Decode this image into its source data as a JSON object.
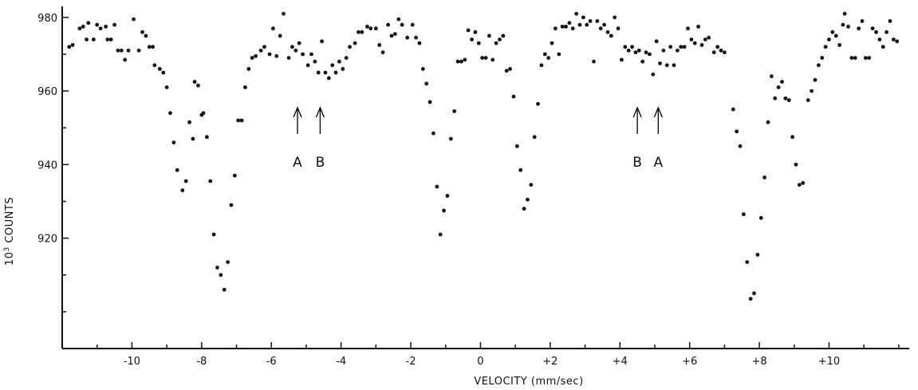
{
  "chart_data": {
    "type": "scatter",
    "title": "",
    "xlabel": "VELOCITY (mm/sec)",
    "ylabel": "10",
    "ylabel_sup": "3",
    "ylabel_rest": " COUNTS",
    "xlim": [
      -12,
      12.3
    ],
    "ylim": [
      890,
      983
    ],
    "x_ticks": [
      -12,
      -11,
      -10,
      -9,
      -8,
      -7,
      -6,
      -5,
      -4,
      -3,
      -2,
      -1,
      0,
      1,
      2,
      3,
      4,
      5,
      6,
      7,
      8,
      9,
      10,
      11,
      12
    ],
    "x_tick_labels": [
      {
        "value": -10,
        "text": "-10"
      },
      {
        "value": -8,
        "text": "-8"
      },
      {
        "value": -6,
        "text": "-6"
      },
      {
        "value": -4,
        "text": "-4"
      },
      {
        "value": -2,
        "text": "-2"
      },
      {
        "value": 0,
        "text": "0"
      },
      {
        "value": 2,
        "text": "+2"
      },
      {
        "value": 4,
        "text": "+4"
      },
      {
        "value": 6,
        "text": "+6"
      },
      {
        "value": 8,
        "text": "+8"
      },
      {
        "value": 10,
        "text": "+10"
      }
    ],
    "y_ticks": [
      900,
      910,
      920,
      930,
      940,
      950,
      960,
      970,
      980
    ],
    "y_tick_labels": [
      {
        "value": 920,
        "text": "920"
      },
      {
        "value": 940,
        "text": "940"
      },
      {
        "value": 960,
        "text": "960"
      },
      {
        "value": 980,
        "text": "980"
      }
    ],
    "grid": false,
    "series": [
      {
        "points": [
          [
            -11.8,
            972
          ],
          [
            -11.7,
            972.5
          ],
          [
            -11.5,
            977
          ],
          [
            -11.4,
            977.5
          ],
          [
            -11.3,
            974
          ],
          [
            -11.25,
            978.5
          ],
          [
            -11.1,
            974
          ],
          [
            -11.0,
            978
          ],
          [
            -10.9,
            977
          ],
          [
            -10.75,
            977.5
          ],
          [
            -10.7,
            974
          ],
          [
            -10.6,
            974
          ],
          [
            -10.5,
            978
          ],
          [
            -10.4,
            971
          ],
          [
            -10.3,
            971
          ],
          [
            -10.2,
            968.5
          ],
          [
            -10.1,
            971
          ],
          [
            -9.95,
            979.5
          ],
          [
            -9.8,
            971
          ],
          [
            -9.7,
            976
          ],
          [
            -9.6,
            975
          ],
          [
            -9.5,
            972
          ],
          [
            -9.4,
            972
          ],
          [
            -9.35,
            967
          ],
          [
            -9.2,
            966
          ],
          [
            -9.1,
            965
          ],
          [
            -9.0,
            961
          ],
          [
            -8.9,
            954
          ],
          [
            -8.8,
            946
          ],
          [
            -8.7,
            938.5
          ],
          [
            -8.55,
            933
          ],
          [
            -8.45,
            935.5
          ],
          [
            -8.35,
            951.5
          ],
          [
            -8.25,
            947
          ],
          [
            -8.2,
            962.5
          ],
          [
            -8.1,
            961.5
          ],
          [
            -8.0,
            953.5
          ],
          [
            -7.95,
            954
          ],
          [
            -7.85,
            947.5
          ],
          [
            -7.75,
            935.5
          ],
          [
            -7.65,
            921
          ],
          [
            -7.55,
            912
          ],
          [
            -7.45,
            910
          ],
          [
            -7.35,
            906
          ],
          [
            -7.25,
            913.5
          ],
          [
            -7.15,
            929
          ],
          [
            -7.05,
            937
          ],
          [
            -6.95,
            952
          ],
          [
            -6.85,
            952
          ],
          [
            -6.75,
            961
          ],
          [
            -6.65,
            966
          ],
          [
            -6.55,
            969
          ],
          [
            -6.45,
            969.5
          ],
          [
            -6.3,
            971
          ],
          [
            -6.2,
            972
          ],
          [
            -6.05,
            970
          ],
          [
            -5.95,
            977
          ],
          [
            -5.85,
            969.5
          ],
          [
            -5.75,
            975
          ],
          [
            -5.65,
            981
          ],
          [
            -5.5,
            969
          ],
          [
            -5.4,
            972
          ],
          [
            -5.3,
            971
          ],
          [
            -5.2,
            973
          ],
          [
            -5.1,
            970
          ],
          [
            -4.95,
            967
          ],
          [
            -4.85,
            970
          ],
          [
            -4.75,
            968
          ],
          [
            -4.65,
            965
          ],
          [
            -4.55,
            973.5
          ],
          [
            -4.45,
            965
          ],
          [
            -4.35,
            963.5
          ],
          [
            -4.25,
            967
          ],
          [
            -4.15,
            965
          ],
          [
            -4.05,
            968
          ],
          [
            -3.95,
            966
          ],
          [
            -3.85,
            969
          ],
          [
            -3.75,
            972
          ],
          [
            -3.6,
            973
          ],
          [
            -3.5,
            976
          ],
          [
            -3.4,
            976
          ],
          [
            -3.25,
            977.5
          ],
          [
            -3.15,
            977
          ],
          [
            -3.0,
            977
          ],
          [
            -2.9,
            972.5
          ],
          [
            -2.8,
            970.5
          ],
          [
            -2.65,
            978
          ],
          [
            -2.55,
            975
          ],
          [
            -2.45,
            975.5
          ],
          [
            -2.35,
            979.5
          ],
          [
            -2.25,
            978
          ],
          [
            -2.1,
            974.5
          ],
          [
            -1.95,
            978
          ],
          [
            -1.85,
            974.5
          ],
          [
            -1.75,
            973
          ],
          [
            -1.65,
            966
          ],
          [
            -1.55,
            962
          ],
          [
            -1.45,
            957
          ],
          [
            -1.35,
            948.5
          ],
          [
            -1.25,
            934
          ],
          [
            -1.15,
            921
          ],
          [
            -1.05,
            927.5
          ],
          [
            -0.95,
            931.5
          ],
          [
            -0.85,
            947
          ],
          [
            -0.75,
            954.5
          ],
          [
            -0.65,
            968
          ],
          [
            -0.55,
            968
          ],
          [
            -0.45,
            968.5
          ],
          [
            -0.35,
            976.5
          ],
          [
            -0.25,
            974
          ],
          [
            -0.15,
            976
          ],
          [
            -0.05,
            973
          ],
          [
            0.05,
            969
          ],
          [
            0.15,
            969
          ],
          [
            0.25,
            975
          ],
          [
            0.35,
            968.5
          ],
          [
            0.45,
            973
          ],
          [
            0.55,
            974
          ],
          [
            0.65,
            975
          ],
          [
            0.75,
            965.5
          ],
          [
            0.85,
            966
          ],
          [
            0.95,
            958.5
          ],
          [
            1.05,
            945
          ],
          [
            1.15,
            938.5
          ],
          [
            1.25,
            928
          ],
          [
            1.35,
            930.5
          ],
          [
            1.45,
            934.5
          ],
          [
            1.55,
            947.5
          ],
          [
            1.65,
            956.5
          ],
          [
            1.75,
            967
          ],
          [
            1.85,
            970
          ],
          [
            1.95,
            969
          ],
          [
            2.05,
            973
          ],
          [
            2.15,
            977
          ],
          [
            2.25,
            970
          ],
          [
            2.35,
            977.5
          ],
          [
            2.45,
            977.5
          ],
          [
            2.55,
            978.5
          ],
          [
            2.65,
            977
          ],
          [
            2.75,
            981
          ],
          [
            2.85,
            978
          ],
          [
            2.95,
            980
          ],
          [
            3.05,
            978
          ],
          [
            3.15,
            979
          ],
          [
            3.25,
            968
          ],
          [
            3.35,
            979
          ],
          [
            3.45,
            977
          ],
          [
            3.55,
            978
          ],
          [
            3.65,
            976
          ],
          [
            3.75,
            975
          ],
          [
            3.85,
            980
          ],
          [
            3.95,
            977
          ],
          [
            4.05,
            968.5
          ],
          [
            4.15,
            972
          ],
          [
            4.25,
            971
          ],
          [
            4.35,
            972
          ],
          [
            4.45,
            970.5
          ],
          [
            4.55,
            971
          ],
          [
            4.65,
            968
          ],
          [
            4.75,
            970.5
          ],
          [
            4.85,
            970
          ],
          [
            4.95,
            964.5
          ],
          [
            5.05,
            973.5
          ],
          [
            5.15,
            967.5
          ],
          [
            5.25,
            971
          ],
          [
            5.35,
            967
          ],
          [
            5.45,
            972
          ],
          [
            5.55,
            967
          ],
          [
            5.65,
            971
          ],
          [
            5.75,
            972
          ],
          [
            5.85,
            972
          ],
          [
            5.95,
            977
          ],
          [
            6.05,
            974
          ],
          [
            6.15,
            973
          ],
          [
            6.25,
            977.5
          ],
          [
            6.35,
            972.5
          ],
          [
            6.45,
            974
          ],
          [
            6.55,
            974.5
          ],
          [
            6.7,
            970.5
          ],
          [
            6.8,
            972
          ],
          [
            6.9,
            971
          ],
          [
            7.0,
            970.5
          ],
          [
            7.25,
            955
          ],
          [
            7.35,
            949
          ],
          [
            7.45,
            945
          ],
          [
            7.55,
            926.5
          ],
          [
            7.65,
            913.5
          ],
          [
            7.75,
            903.5
          ],
          [
            7.85,
            905
          ],
          [
            7.95,
            915.5
          ],
          [
            8.05,
            925.5
          ],
          [
            8.15,
            936.5
          ],
          [
            8.25,
            951.5
          ],
          [
            8.35,
            964
          ],
          [
            8.45,
            958
          ],
          [
            8.55,
            961
          ],
          [
            8.65,
            962.5
          ],
          [
            8.75,
            958
          ],
          [
            8.85,
            957.5
          ],
          [
            8.95,
            947.5
          ],
          [
            9.05,
            940
          ],
          [
            9.15,
            934.5
          ],
          [
            9.25,
            935
          ],
          [
            9.4,
            957.5
          ],
          [
            9.5,
            960
          ],
          [
            9.6,
            963
          ],
          [
            9.7,
            967
          ],
          [
            9.8,
            969
          ],
          [
            9.9,
            972
          ],
          [
            10.0,
            974
          ],
          [
            10.1,
            976
          ],
          [
            10.2,
            975
          ],
          [
            10.3,
            972.5
          ],
          [
            10.4,
            978
          ],
          [
            10.45,
            981
          ],
          [
            10.55,
            977.5
          ],
          [
            10.65,
            969
          ],
          [
            10.75,
            969
          ],
          [
            10.85,
            977
          ],
          [
            10.95,
            979
          ],
          [
            11.05,
            969
          ],
          [
            11.15,
            969
          ],
          [
            11.25,
            977
          ],
          [
            11.35,
            976
          ],
          [
            11.45,
            974
          ],
          [
            11.55,
            972
          ],
          [
            11.65,
            976
          ],
          [
            11.75,
            979
          ],
          [
            11.85,
            974
          ],
          [
            11.95,
            973.5
          ]
        ]
      }
    ],
    "annotations": [
      {
        "x": -5.25,
        "label": "A"
      },
      {
        "x": -4.6,
        "label": "B"
      },
      {
        "x": 4.5,
        "label": "B"
      },
      {
        "x": 5.1,
        "label": "A"
      }
    ]
  }
}
